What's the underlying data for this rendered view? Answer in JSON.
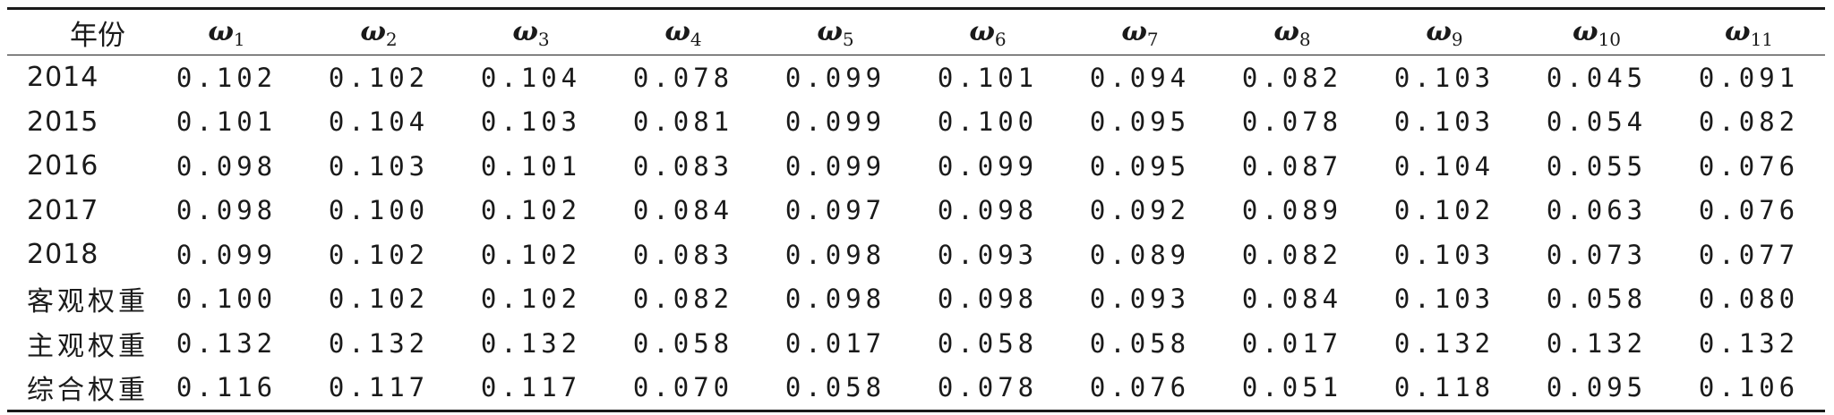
{
  "table": {
    "header": {
      "year_label": "年份",
      "weights": [
        {
          "symbol": "ω",
          "sub": "1"
        },
        {
          "symbol": "ω",
          "sub": "2"
        },
        {
          "symbol": "ω",
          "sub": "3"
        },
        {
          "symbol": "ω",
          "sub": "4"
        },
        {
          "symbol": "ω",
          "sub": "5"
        },
        {
          "symbol": "ω",
          "sub": "6"
        },
        {
          "symbol": "ω",
          "sub": "7"
        },
        {
          "symbol": "ω",
          "sub": "8"
        },
        {
          "symbol": "ω",
          "sub": "9"
        },
        {
          "symbol": "ω",
          "sub": "10"
        },
        {
          "symbol": "ω",
          "sub": "11"
        }
      ]
    },
    "rows": [
      {
        "label": "2014",
        "values": [
          "0.102",
          "0.102",
          "0.104",
          "0.078",
          "0.099",
          "0.101",
          "0.094",
          "0.082",
          "0.103",
          "0.045",
          "0.091"
        ]
      },
      {
        "label": "2015",
        "values": [
          "0.101",
          "0.104",
          "0.103",
          "0.081",
          "0.099",
          "0.100",
          "0.095",
          "0.078",
          "0.103",
          "0.054",
          "0.082"
        ]
      },
      {
        "label": "2016",
        "values": [
          "0.098",
          "0.103",
          "0.101",
          "0.083",
          "0.099",
          "0.099",
          "0.095",
          "0.087",
          "0.104",
          "0.055",
          "0.076"
        ]
      },
      {
        "label": "2017",
        "values": [
          "0.098",
          "0.100",
          "0.102",
          "0.084",
          "0.097",
          "0.098",
          "0.092",
          "0.089",
          "0.102",
          "0.063",
          "0.076"
        ]
      },
      {
        "label": "2018",
        "values": [
          "0.099",
          "0.102",
          "0.102",
          "0.083",
          "0.098",
          "0.093",
          "0.089",
          "0.082",
          "0.103",
          "0.073",
          "0.077"
        ]
      },
      {
        "label": "客观权重",
        "values": [
          "0.100",
          "0.102",
          "0.102",
          "0.082",
          "0.098",
          "0.098",
          "0.093",
          "0.084",
          "0.103",
          "0.058",
          "0.080"
        ]
      },
      {
        "label": "主观权重",
        "values": [
          "0.132",
          "0.132",
          "0.132",
          "0.058",
          "0.017",
          "0.058",
          "0.058",
          "0.017",
          "0.132",
          "0.132",
          "0.132"
        ]
      },
      {
        "label": "综合权重",
        "values": [
          "0.116",
          "0.117",
          "0.117",
          "0.070",
          "0.058",
          "0.078",
          "0.076",
          "0.051",
          "0.118",
          "0.095",
          "0.106"
        ]
      }
    ]
  }
}
